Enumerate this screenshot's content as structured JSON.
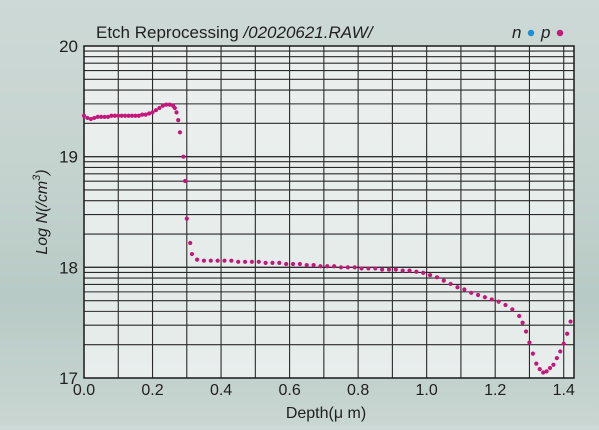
{
  "chart_data": {
    "type": "scatter",
    "title_prefix": "Etch Reprocessing ",
    "title_file": "/02020621.RAW/",
    "xlabel": "Depth(μ m)",
    "ylabel_main": "Log N(/cm",
    "ylabel_sup": "3",
    "ylabel_close": ")",
    "xlim": [
      0.0,
      1.43
    ],
    "ylim": [
      17,
      20
    ],
    "y_scale": "log (decade rows with log minor gridlines)",
    "grid": true,
    "xticks": [
      0.0,
      0.2,
      0.4,
      0.6,
      0.8,
      1.0,
      1.2,
      1.4
    ],
    "xtick_labels": [
      "0.0",
      "0.2",
      "0.4",
      "0.6",
      "0.8",
      "1.0",
      "1.2",
      "1.4"
    ],
    "yticks": [
      17,
      18,
      19,
      20
    ],
    "ytick_labels": [
      "17",
      "18",
      "19",
      "20"
    ],
    "legend": {
      "position": "top-right",
      "items": [
        {
          "label": "n",
          "color": "#1e8fd0"
        },
        {
          "label": "p",
          "color": "#c4177a"
        }
      ]
    },
    "series": [
      {
        "name": "p",
        "color": "#c4177a",
        "points": [
          [
            0.0,
            19.37
          ],
          [
            0.01,
            19.35
          ],
          [
            0.02,
            19.34
          ],
          [
            0.03,
            19.35
          ],
          [
            0.04,
            19.36
          ],
          [
            0.05,
            19.36
          ],
          [
            0.06,
            19.36
          ],
          [
            0.07,
            19.36
          ],
          [
            0.08,
            19.37
          ],
          [
            0.09,
            19.37
          ],
          [
            0.1,
            19.37
          ],
          [
            0.11,
            19.37
          ],
          [
            0.12,
            19.37
          ],
          [
            0.13,
            19.37
          ],
          [
            0.14,
            19.37
          ],
          [
            0.15,
            19.37
          ],
          [
            0.16,
            19.37
          ],
          [
            0.17,
            19.38
          ],
          [
            0.18,
            19.38
          ],
          [
            0.19,
            19.39
          ],
          [
            0.2,
            19.4
          ],
          [
            0.21,
            19.42
          ],
          [
            0.22,
            19.44
          ],
          [
            0.23,
            19.46
          ],
          [
            0.24,
            19.47
          ],
          [
            0.25,
            19.47
          ],
          [
            0.26,
            19.46
          ],
          [
            0.265,
            19.44
          ],
          [
            0.27,
            19.4
          ],
          [
            0.275,
            19.33
          ],
          [
            0.28,
            19.22
          ],
          [
            0.29,
            19.0
          ],
          [
            0.295,
            18.78
          ],
          [
            0.3,
            18.44
          ],
          [
            0.31,
            18.22
          ],
          [
            0.315,
            18.12
          ],
          [
            0.33,
            18.07
          ],
          [
            0.35,
            18.06
          ],
          [
            0.37,
            18.06
          ],
          [
            0.39,
            18.06
          ],
          [
            0.41,
            18.06
          ],
          [
            0.43,
            18.06
          ],
          [
            0.45,
            18.05
          ],
          [
            0.47,
            18.05
          ],
          [
            0.49,
            18.05
          ],
          [
            0.51,
            18.05
          ],
          [
            0.53,
            18.04
          ],
          [
            0.55,
            18.04
          ],
          [
            0.57,
            18.04
          ],
          [
            0.59,
            18.03
          ],
          [
            0.61,
            18.03
          ],
          [
            0.63,
            18.03
          ],
          [
            0.65,
            18.02
          ],
          [
            0.67,
            18.02
          ],
          [
            0.69,
            18.01
          ],
          [
            0.71,
            18.01
          ],
          [
            0.73,
            18.01
          ],
          [
            0.75,
            18.0
          ],
          [
            0.77,
            18.0
          ],
          [
            0.79,
            18.0
          ],
          [
            0.81,
            17.99
          ],
          [
            0.83,
            17.99
          ],
          [
            0.85,
            17.99
          ],
          [
            0.87,
            17.98
          ],
          [
            0.89,
            17.98
          ],
          [
            0.91,
            17.98
          ],
          [
            0.93,
            17.97
          ],
          [
            0.95,
            17.97
          ],
          [
            0.97,
            17.96
          ],
          [
            0.99,
            17.95
          ],
          [
            1.01,
            17.93
          ],
          [
            1.03,
            17.91
          ],
          [
            1.05,
            17.88
          ],
          [
            1.07,
            17.85
          ],
          [
            1.09,
            17.82
          ],
          [
            1.11,
            17.8
          ],
          [
            1.13,
            17.77
          ],
          [
            1.15,
            17.75
          ],
          [
            1.17,
            17.73
          ],
          [
            1.19,
            17.71
          ],
          [
            1.21,
            17.69
          ],
          [
            1.23,
            17.66
          ],
          [
            1.25,
            17.62
          ],
          [
            1.27,
            17.56
          ],
          [
            1.28,
            17.5
          ],
          [
            1.29,
            17.42
          ],
          [
            1.3,
            17.32
          ],
          [
            1.31,
            17.22
          ],
          [
            1.32,
            17.13
          ],
          [
            1.33,
            17.08
          ],
          [
            1.34,
            17.05
          ],
          [
            1.35,
            17.06
          ],
          [
            1.36,
            17.09
          ],
          [
            1.37,
            17.12
          ],
          [
            1.38,
            17.18
          ],
          [
            1.39,
            17.24
          ],
          [
            1.4,
            17.31
          ],
          [
            1.41,
            17.4
          ],
          [
            1.42,
            17.51
          ]
        ]
      }
    ]
  },
  "colors": {
    "plot_background": "#ffffff",
    "grid": "#2a2a2a",
    "frame": "#1a1a1a",
    "text": "#1f1f1f"
  }
}
